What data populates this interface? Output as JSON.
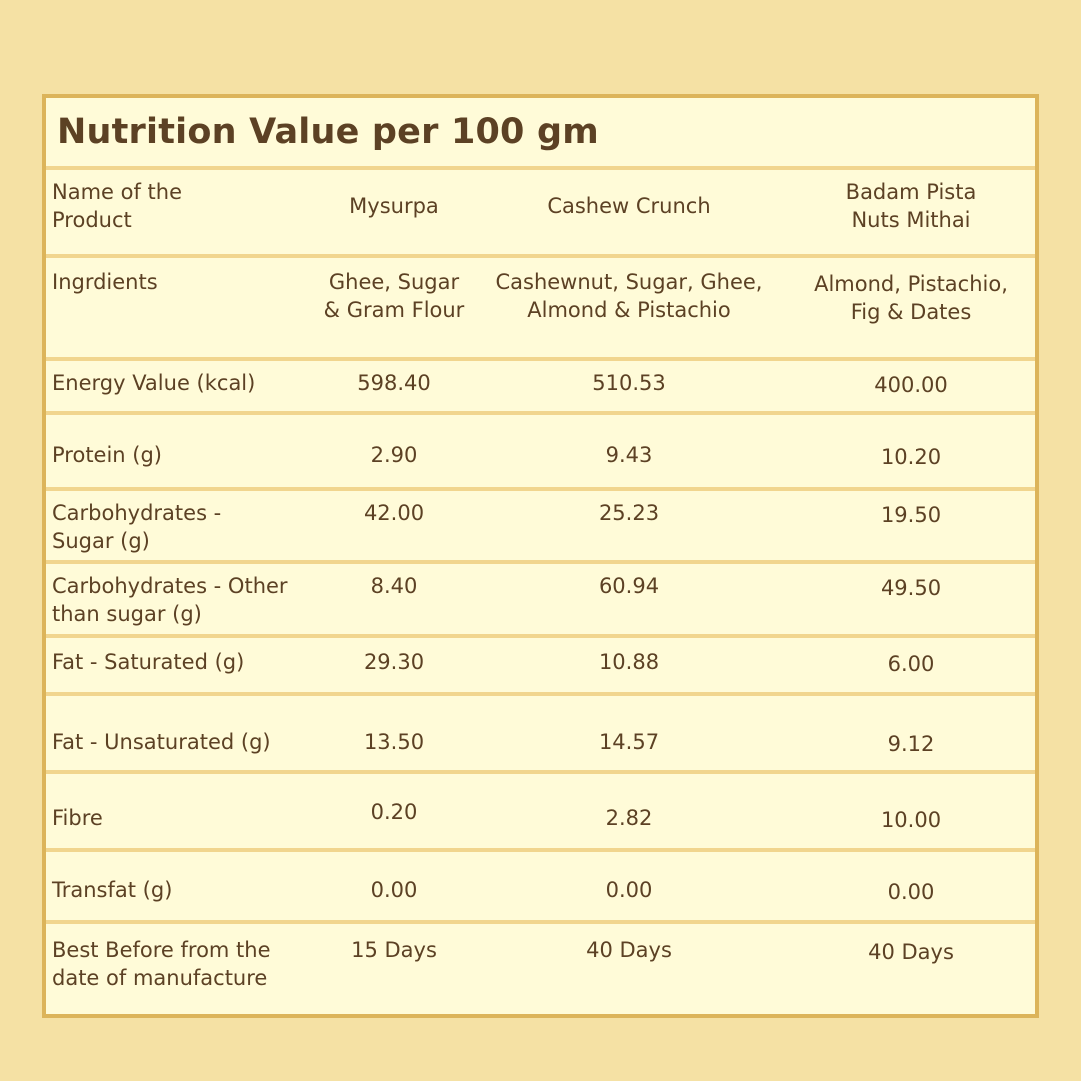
{
  "title": "Nutrition Value per 100 gm",
  "header": {
    "label": "Name of the Product",
    "label_line1": "Name of the",
    "label_line2": "Product",
    "products": [
      "Mysurpa",
      "Cashew Crunch",
      "Badam Pista Nuts Mithai"
    ],
    "product3_line1": "Badam Pista",
    "product3_line2": "Nuts Mithai"
  },
  "rows": [
    {
      "label_lines": [
        "Ingrdients"
      ],
      "values": [
        [
          "Ghee, Sugar",
          "& Gram Flour"
        ],
        [
          "Cashewnut, Sugar, Ghee,",
          "Almond & Pistachio"
        ],
        [
          "Almond, Pistachio,",
          "Fig & Dates"
        ]
      ]
    },
    {
      "label_lines": [
        "Energy Value (kcal)"
      ],
      "values": [
        [
          "598.40"
        ],
        [
          "510.53"
        ],
        [
          "400.00"
        ]
      ]
    },
    {
      "label_lines": [
        "Protein (g)"
      ],
      "values": [
        [
          "2.90"
        ],
        [
          "9.43"
        ],
        [
          "10.20"
        ]
      ]
    },
    {
      "label_lines": [
        "Carbohydrates -",
        "Sugar (g)"
      ],
      "values": [
        [
          "42.00"
        ],
        [
          "25.23"
        ],
        [
          "19.50"
        ]
      ]
    },
    {
      "label_lines": [
        "Carbohydrates - Other",
        "than sugar (g)"
      ],
      "values": [
        [
          "8.40"
        ],
        [
          "60.94"
        ],
        [
          "49.50"
        ]
      ]
    },
    {
      "label_lines": [
        "Fat - Saturated (g)"
      ],
      "values": [
        [
          "29.30"
        ],
        [
          "10.88"
        ],
        [
          "6.00"
        ]
      ]
    },
    {
      "label_lines": [
        "Fat - Unsaturated (g)"
      ],
      "values": [
        [
          "13.50"
        ],
        [
          "14.57"
        ],
        [
          "9.12"
        ]
      ]
    },
    {
      "label_lines": [
        "Fibre"
      ],
      "values": [
        [
          "0.20"
        ],
        [
          "2.82"
        ],
        [
          "10.00"
        ]
      ]
    },
    {
      "label_lines": [
        "Transfat (g)"
      ],
      "values": [
        [
          "0.00"
        ],
        [
          "0.00"
        ],
        [
          "0.00"
        ]
      ]
    },
    {
      "label_lines": [
        "Best Before from the",
        "date of manufacture"
      ],
      "values": [
        [
          "15 Days"
        ],
        [
          "40 Days"
        ],
        [
          "40 Days"
        ]
      ]
    }
  ],
  "colors": {
    "background": "#f5e1a4",
    "panel": "#fffbd8",
    "border": "#dcb45a",
    "divider": "#f1d58e",
    "text": "#5c4124"
  }
}
